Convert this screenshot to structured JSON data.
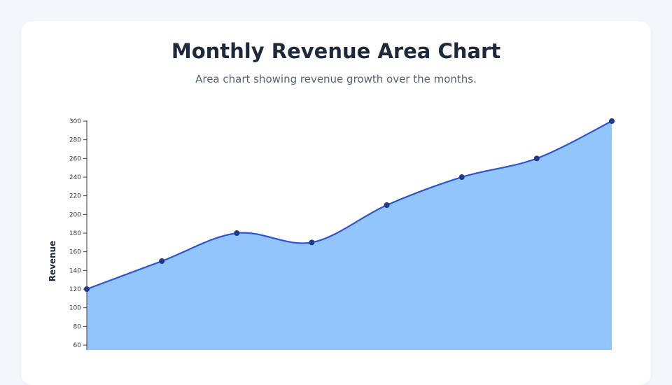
{
  "header": {
    "title": "Monthly Revenue Area Chart",
    "subtitle": "Area chart showing revenue growth over the months."
  },
  "colors": {
    "background": "#f3f6fa",
    "card": "#ffffff",
    "area_fill": "#93c5fd",
    "line": "#2b54d4",
    "points": "#1e3a8a"
  },
  "chart_data": {
    "type": "area",
    "title": "Monthly Revenue Area Chart",
    "subtitle": "Area chart showing revenue growth over the months.",
    "xlabel": "",
    "ylabel": "Revenue",
    "yticks": [
      60,
      80,
      100,
      120,
      140,
      160,
      180,
      200,
      220,
      240,
      260,
      280,
      300
    ],
    "ylim": [
      60,
      300
    ],
    "grid": false,
    "series": [
      {
        "values": [
          120,
          150,
          180,
          170,
          210,
          240,
          260,
          300
        ]
      }
    ]
  }
}
